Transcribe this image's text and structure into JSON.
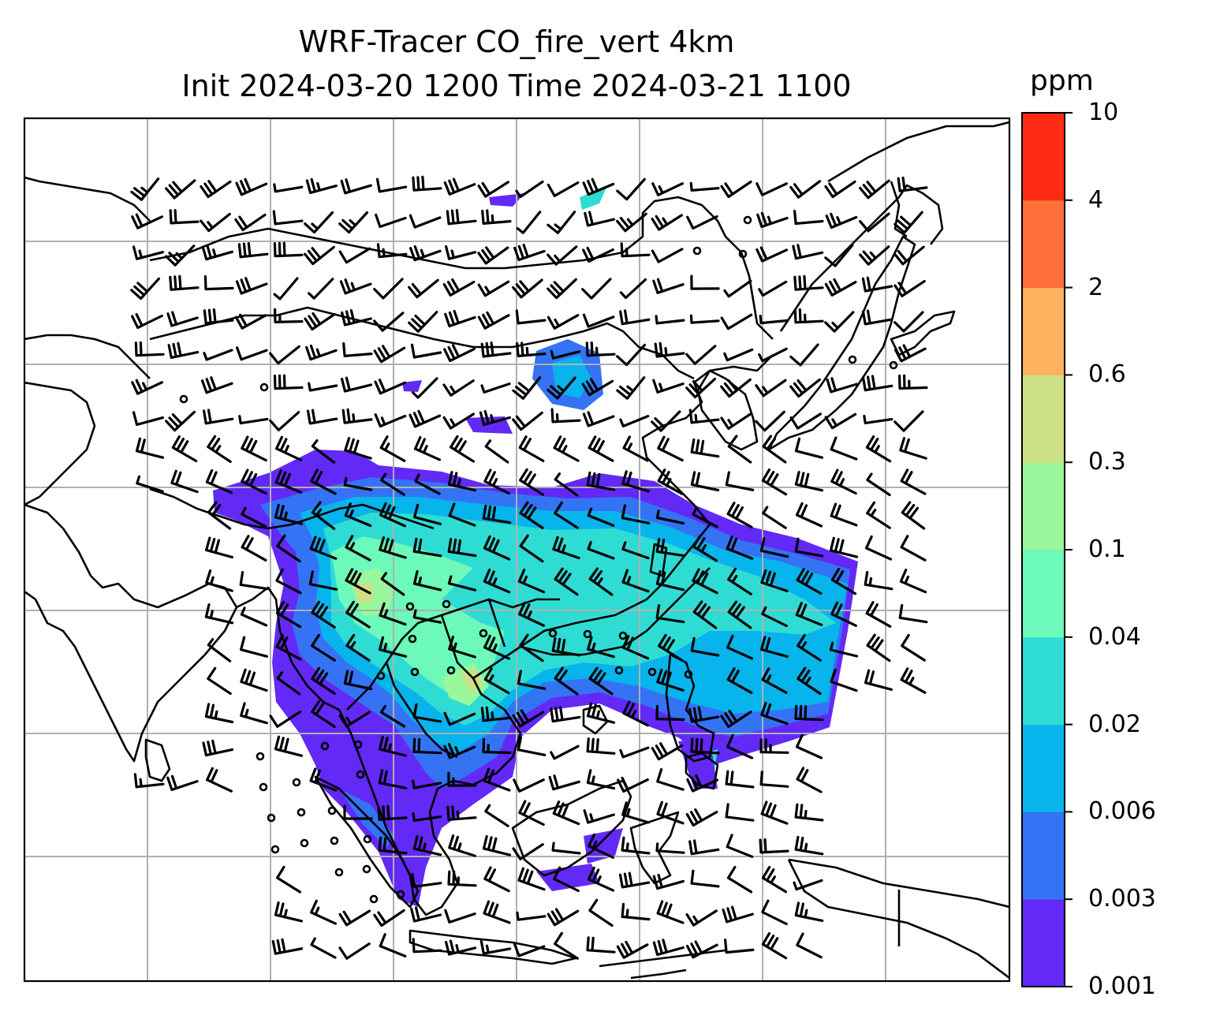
{
  "title": {
    "line1": "WRF-Tracer CO_fire_vert 4km",
    "line2": "Init 2024-03-20 1200 Time 2024-03-21 1100"
  },
  "colorbar": {
    "unit": "ppm",
    "levels": [
      "0.001",
      "0.003",
      "0.006",
      "0.02",
      "0.04",
      "0.1",
      "0.3",
      "0.6",
      "2",
      "4",
      "10"
    ],
    "colors": [
      "#6229f7",
      "#3473f4",
      "#08b4ec",
      "#2fdcd4",
      "#6cf9b9",
      "#9bf79b",
      "#cee085",
      "#feb15f",
      "#ff6f39",
      "#fe2c14"
    ]
  },
  "map": {
    "gridlines": true,
    "gridline_color": "#b0b0b0",
    "coastline_color": "#000000",
    "wind_barb_color": "#000000",
    "fields": [
      "CO fire tracer concentration (filled contours)",
      "wind barbs"
    ]
  }
}
